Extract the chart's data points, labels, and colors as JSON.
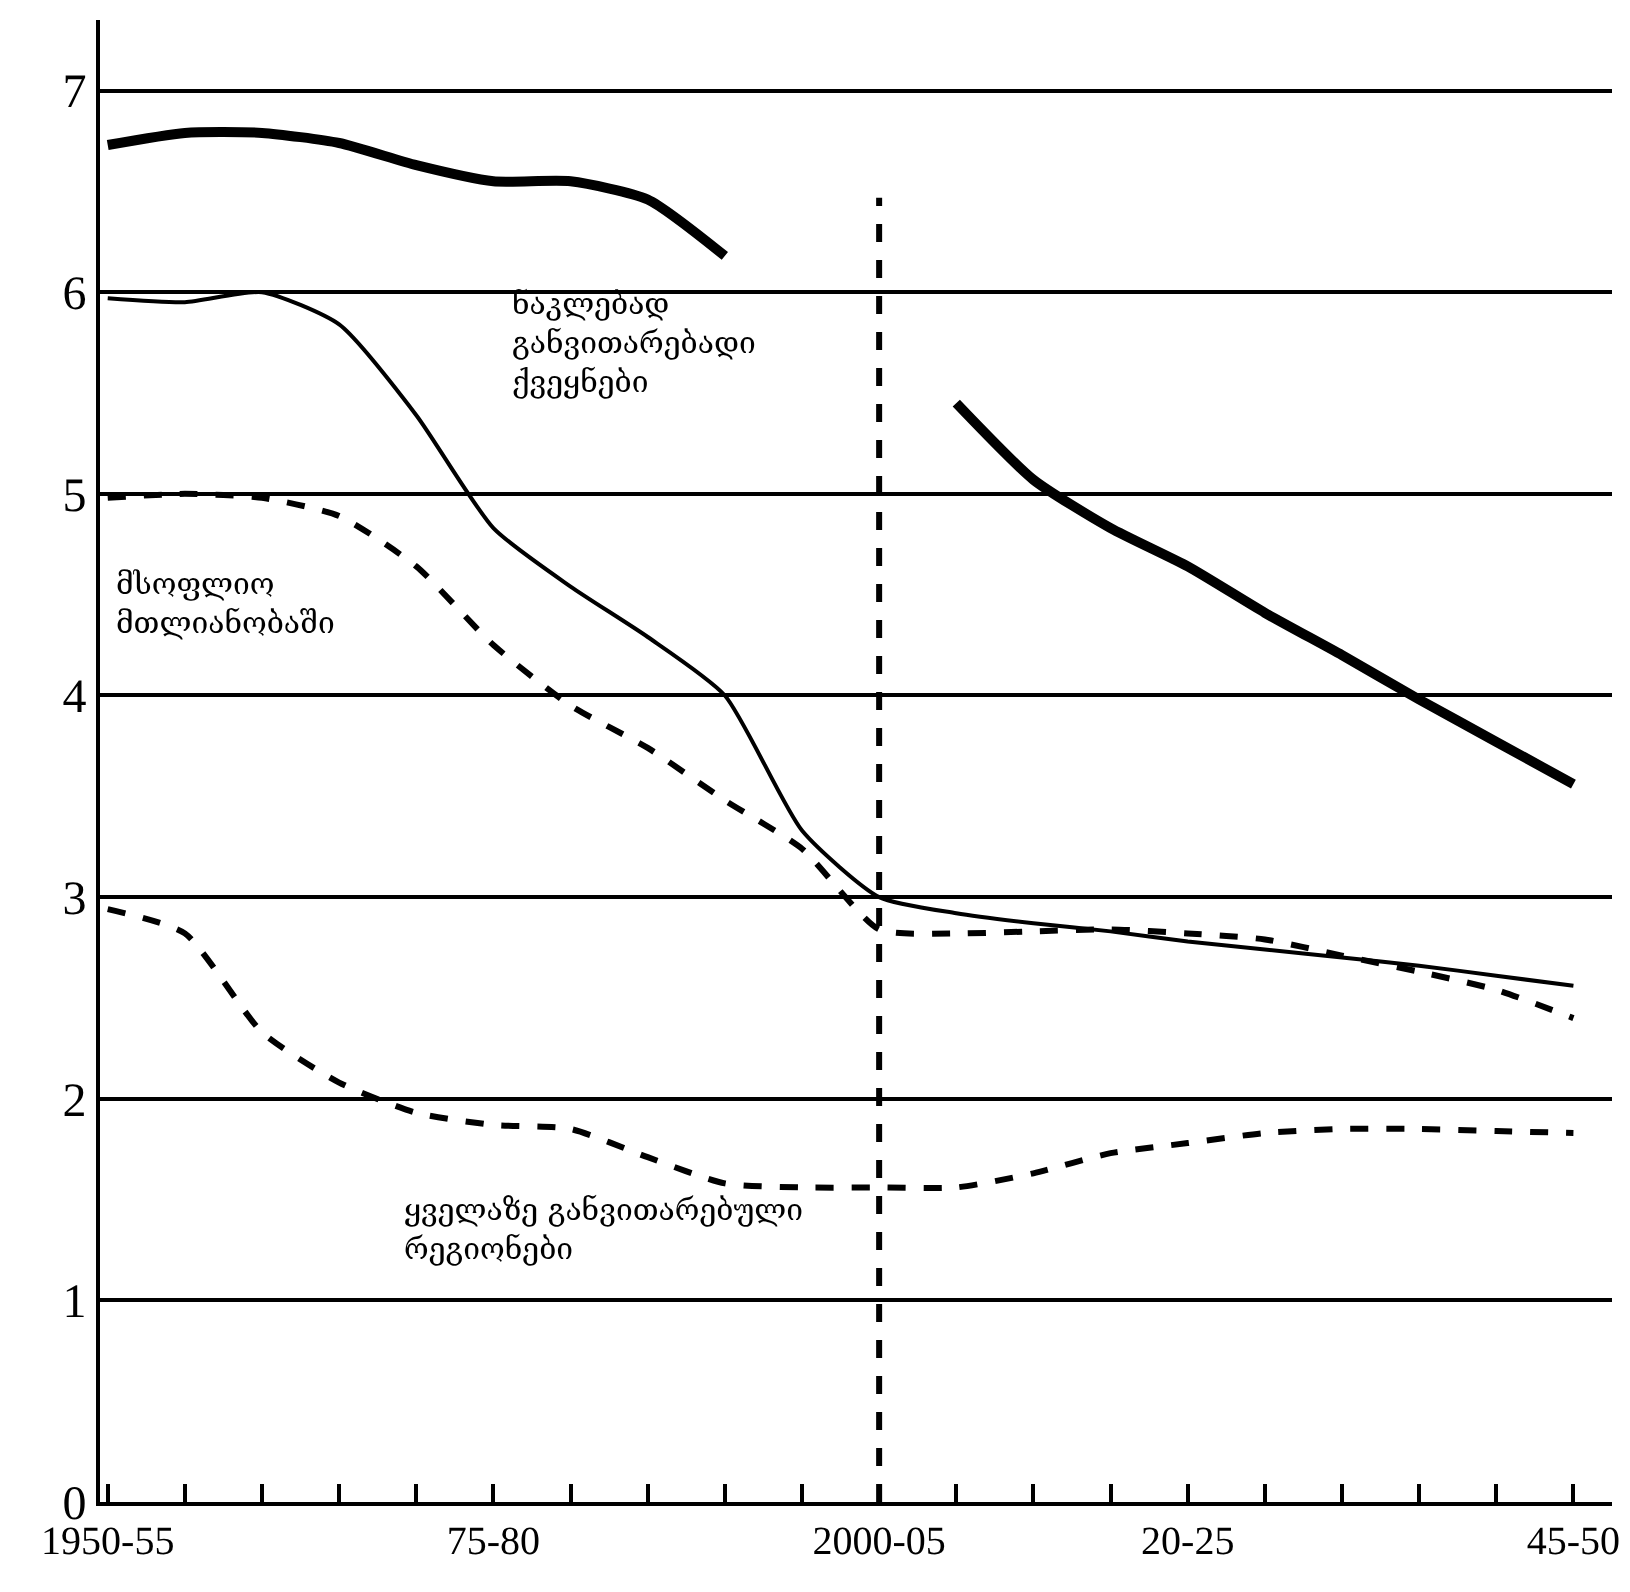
{
  "chart_data": {
    "type": "line",
    "categories": [
      "1950-55",
      null,
      null,
      null,
      null,
      "75-80",
      null,
      null,
      null,
      null,
      "2000-05",
      null,
      null,
      null,
      "20-25",
      null,
      null,
      null,
      null,
      "45-50"
    ],
    "series": [
      {
        "name": "ნაკლებად განვითარებადი ქვეყნები",
        "color": "#000000",
        "line_style": "solid",
        "values": [
          6.73,
          6.79,
          6.79,
          6.74,
          6.63,
          6.55,
          6.55,
          6.46,
          6.18,
          null,
          null,
          5.45,
          5.07,
          4.83,
          4.64,
          4.41,
          4.2,
          3.98,
          3.77,
          3.56
        ]
      },
      {
        "color": "#000000",
        "line_style": "solid",
        "values": [
          5.97,
          5.95,
          6.0,
          5.84,
          5.39,
          4.83,
          4.54,
          4.29,
          4.0,
          3.33,
          3.0,
          2.92,
          2.87,
          2.83,
          2.78,
          2.74,
          2.7,
          2.66,
          2.61,
          2.56
        ]
      },
      {
        "name": "მსოფლიო მთლიანობაში",
        "color": "#000000",
        "line_style": "dashed",
        "values": [
          4.98,
          5.0,
          4.98,
          4.89,
          4.64,
          4.25,
          3.95,
          3.74,
          3.48,
          3.24,
          2.84,
          2.82,
          2.83,
          2.84,
          2.82,
          2.79,
          2.71,
          2.63,
          2.54,
          2.4
        ]
      },
      {
        "name": "ყველაზე განვითარებული რეგიონები",
        "color": "#000000",
        "line_style": "dashed",
        "values": [
          2.94,
          2.82,
          2.33,
          2.08,
          1.93,
          1.87,
          1.85,
          1.71,
          1.58,
          1.56,
          1.56,
          1.56,
          1.63,
          1.73,
          1.78,
          1.83,
          1.85,
          1.85,
          1.84,
          1.83
        ]
      }
    ],
    "ylim": [
      0,
      7.35
    ],
    "yticks": [
      0,
      1,
      2,
      3,
      4,
      5,
      6,
      7
    ],
    "grid": "y",
    "legend": false,
    "marker": "none",
    "ref_lines": [
      {
        "axis": "x",
        "value": "2000-05",
        "color": "#000000",
        "line_style": "dashed"
      }
    ]
  }
}
